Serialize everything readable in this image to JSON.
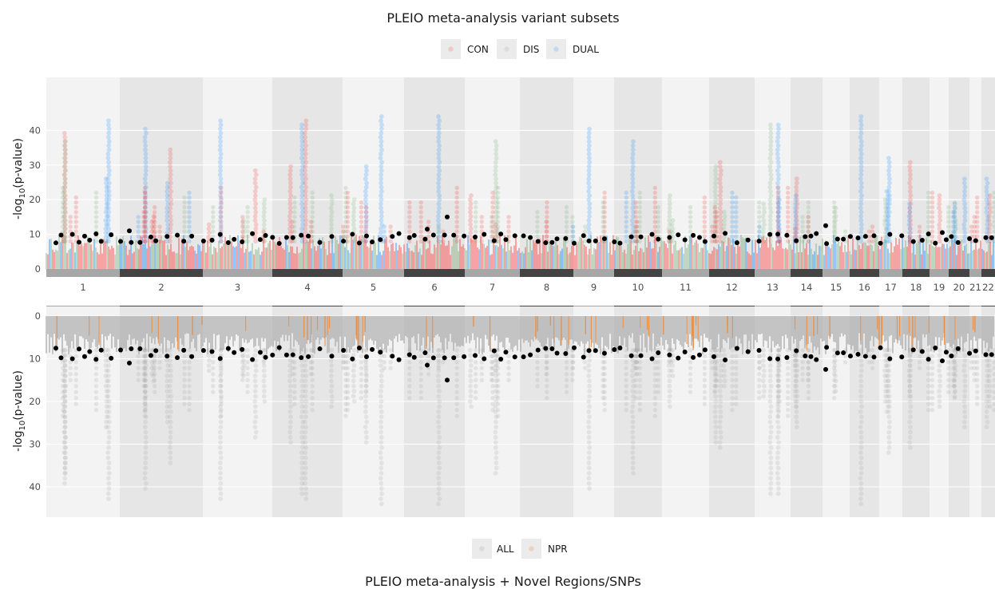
{
  "chart_data": [
    {
      "type": "scatter",
      "subtype": "manhattan",
      "title": "PLEIO meta-analysis variant subsets",
      "ylabel_prefix": "-log",
      "ylabel_sub": "10",
      "ylabel_suffix": "(p-value)",
      "ylim": [
        0,
        47
      ],
      "yticks": [
        "0",
        "10",
        "20",
        "30",
        "40"
      ],
      "legend_position": "top",
      "legend": [
        {
          "name": "CON",
          "color": "#f8403f"
        },
        {
          "name": "DIS",
          "color": "#80b27f"
        },
        {
          "name": "DUAL",
          "color": "#1e90ff"
        }
      ],
      "chromosomes": [
        "1",
        "2",
        "3",
        "4",
        "5",
        "6",
        "7",
        "8",
        "9",
        "10",
        "11",
        "12",
        "13",
        "14",
        "15",
        "16",
        "17",
        "18",
        "19",
        "20",
        "21",
        "22"
      ],
      "lead_snp_color": "#000000",
      "series": [
        {
          "name": "CON",
          "peaks": [
            [
              1,
              40
            ],
            [
              2,
              35
            ],
            [
              3,
              29
            ],
            [
              4,
              44
            ],
            [
              7,
              22
            ],
            [
              12,
              31
            ],
            [
              14,
              26
            ],
            [
              18,
              31
            ],
            [
              19,
              22
            ],
            [
              22,
              22
            ]
          ]
        },
        {
          "name": "DIS",
          "peaks": [
            [
              1,
              37
            ],
            [
              3,
              20
            ],
            [
              4,
              22
            ],
            [
              5,
              21
            ],
            [
              7,
              37
            ],
            [
              11,
              22
            ],
            [
              12,
              30
            ],
            [
              13,
              42
            ],
            [
              15,
              18
            ],
            [
              17,
              20
            ]
          ]
        },
        {
          "name": "DUAL",
          "peaks": [
            [
              1,
              43
            ],
            [
              2,
              41
            ],
            [
              3,
              44
            ],
            [
              4,
              42
            ],
            [
              5,
              45
            ],
            [
              6,
              45
            ],
            [
              9,
              41
            ],
            [
              10,
              37
            ],
            [
              13,
              42
            ],
            [
              14,
              22
            ],
            [
              16,
              45
            ],
            [
              17,
              33
            ],
            [
              18,
              19
            ],
            [
              20,
              26
            ],
            [
              22,
              27
            ]
          ]
        }
      ]
    },
    {
      "type": "scatter",
      "subtype": "manhattan",
      "title": "PLEIO meta-analysis + Novel Regions/SNPs",
      "ylabel_prefix": "-log",
      "ylabel_sub": "10",
      "ylabel_suffix": "(p-value)",
      "ylim": [
        0,
        47
      ],
      "y_axis_reversed": true,
      "yticks": [
        "0",
        "10",
        "20",
        "30",
        "40"
      ],
      "legend_position": "bottom",
      "legend": [
        {
          "name": "ALL",
          "color": "#a9a9a9"
        },
        {
          "name": "NPR",
          "color": "#f08a37"
        }
      ],
      "lead_snp_color": "#000000"
    }
  ]
}
